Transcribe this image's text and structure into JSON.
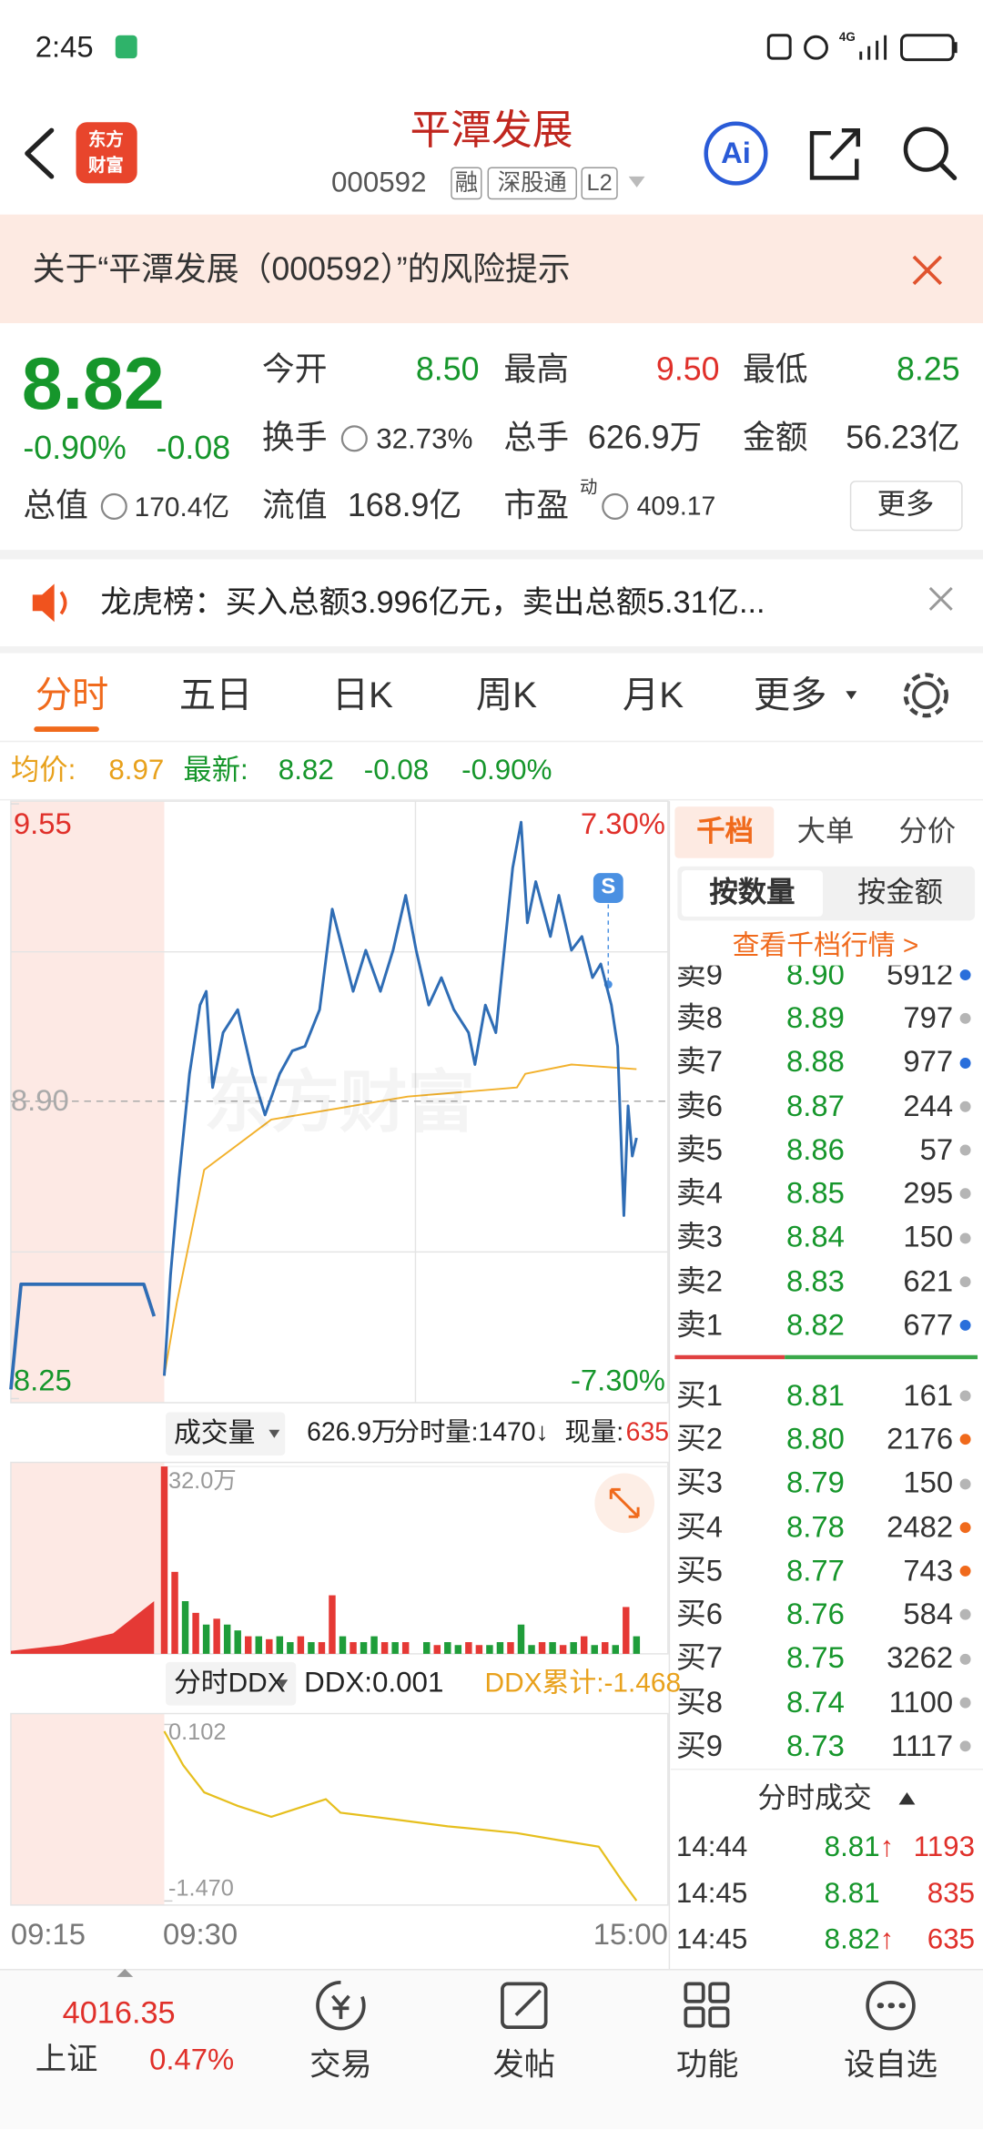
{
  "status": {
    "time": "2:45",
    "network": "4G"
  },
  "header": {
    "logo": [
      "东方",
      "财富"
    ],
    "title": "平潭发展",
    "code": "000592",
    "tags": [
      "融",
      "深股通",
      "L2"
    ],
    "ai": "Ai"
  },
  "banner": {
    "text": "关于“平潭发展（000592）”的风险提示"
  },
  "quote": {
    "price": "8.82",
    "change_pct": "-0.90%",
    "change": "-0.08",
    "open": {
      "label": "今开",
      "value": "8.50"
    },
    "high": {
      "label": "最高",
      "value": "9.50"
    },
    "low": {
      "label": "最低",
      "value": "8.25"
    },
    "turnover": {
      "label": "换手",
      "value": "32.73%"
    },
    "volume": {
      "label": "总手",
      "value": "626.9万"
    },
    "amount": {
      "label": "金额",
      "value": "56.23亿"
    },
    "market_cap": {
      "label": "总值",
      "value": "170.4亿"
    },
    "float_cap": {
      "label": "流值",
      "value": "168.9亿"
    },
    "pe": {
      "label": "市盈",
      "sup": "动",
      "value": "409.17"
    },
    "more": "更多"
  },
  "notice": {
    "text": "龙虎榜：买入总额3.996亿元，卖出总额5.31亿..."
  },
  "tabs": {
    "items": [
      "分时",
      "五日",
      "日K",
      "周K",
      "月K",
      "更多"
    ],
    "active": 0
  },
  "summary": {
    "avg_label": "均价:",
    "avg": "8.97",
    "last_label": "最新:",
    "last": "8.82",
    "change": "-0.08",
    "change_pct": "-0.90%"
  },
  "intraday": {
    "watermark": "东方财富",
    "price_ylim": [
      8.25,
      9.55
    ],
    "price_ticks": [
      9.55,
      8.25,
      {
        "value": 8.9,
        "label": "8.90"
      }
    ],
    "pct_labels": [
      "7.30%",
      "-7.30%"
    ],
    "signal": "S",
    "price": {
      "color": "#2f6db5",
      "x": [
        "09:30",
        "09:33",
        "09:37",
        "09:42",
        "09:47",
        "09:50",
        "09:53",
        "09:58",
        "10:05",
        "10:12",
        "10:18",
        "10:25",
        "10:31",
        "10:37",
        "10:44",
        "10:50",
        "10:55",
        "11:00",
        "11:06",
        "11:13",
        "11:19",
        "11:25",
        "11:30",
        "13:06",
        "13:12",
        "13:18",
        "13:25",
        "13:28",
        "13:33",
        "13:38",
        "13:42",
        "13:46",
        "13:50",
        "13:53",
        "13:57",
        "14:04",
        "14:08",
        "14:14",
        "14:19",
        "14:24",
        "14:28",
        "14:33",
        "14:36",
        "14:39",
        "14:41",
        "14:43",
        "14:45"
      ],
      "values": [
        8.3,
        8.52,
        8.73,
        8.96,
        9.11,
        9.14,
        8.93,
        9.05,
        9.1,
        8.96,
        8.87,
        8.96,
        9.01,
        9.02,
        9.1,
        9.32,
        9.23,
        9.14,
        9.23,
        9.14,
        9.23,
        9.35,
        9.23,
        9.11,
        9.17,
        9.1,
        9.05,
        8.98,
        9.11,
        9.05,
        9.23,
        9.41,
        9.51,
        9.29,
        9.38,
        9.26,
        9.35,
        9.23,
        9.26,
        9.17,
        9.2,
        9.11,
        9.02,
        8.65,
        8.89,
        8.78,
        8.82
      ]
    },
    "auction": {
      "x": [
        "09:15",
        "09:16",
        "09:28",
        "09:29"
      ],
      "values": [
        8.27,
        8.5,
        8.5,
        8.43
      ]
    },
    "avg": {
      "color": "#f2b12c",
      "x": [
        "09:30",
        "09:36",
        "09:49",
        "10:21",
        "11:00",
        "11:26",
        "13:48",
        "13:52",
        "14:14",
        "14:45"
      ],
      "values": [
        8.3,
        8.46,
        8.75,
        8.86,
        8.89,
        8.91,
        8.93,
        8.96,
        8.98,
        8.97
      ]
    },
    "volume_panel": {
      "selector": "成交量",
      "total": "626.9万",
      "minute": "分时量:1470↓",
      "current_label": "现量:",
      "current": "635"
    },
    "volume": {
      "ylim": [
        0,
        32
      ],
      "yticks": [
        {
          "value": 32,
          "label": "32.0万"
        }
      ],
      "x": [
        "09:30",
        "09:35",
        "09:40",
        "09:45",
        "09:50",
        "09:55",
        "10:00",
        "10:05",
        "10:10",
        "10:15",
        "10:20",
        "10:25",
        "10:30",
        "10:35",
        "10:40",
        "10:45",
        "10:50",
        "10:55",
        "11:00",
        "11:05",
        "11:10",
        "11:15",
        "11:20",
        "11:25",
        "13:05",
        "13:10",
        "13:15",
        "13:20",
        "13:25",
        "13:30",
        "13:35",
        "13:40",
        "13:45",
        "13:50",
        "13:55",
        "14:00",
        "14:05",
        "14:10",
        "14:15",
        "14:20",
        "14:25",
        "14:30",
        "14:35",
        "14:40",
        "14:45"
      ],
      "values": [
        32,
        14,
        9,
        7,
        5,
        6,
        5,
        4,
        3,
        3,
        2.5,
        3,
        2,
        3,
        2,
        2,
        10,
        3,
        2,
        2,
        3,
        2,
        2,
        2,
        2,
        1.5,
        2,
        1.5,
        2,
        1.5,
        1.5,
        2,
        2,
        5,
        1.5,
        2,
        2,
        1.5,
        2,
        3,
        1.5,
        2,
        1.5,
        8,
        3
      ],
      "colors": [
        "#e53935",
        "#e53935",
        "#1f9d3a",
        "#e53935",
        "#1f9d3a",
        "#e53935",
        "#1f9d3a",
        "#1f9d3a",
        "#e53935",
        "#1f9d3a",
        "#e53935",
        "#1f9d3a",
        "#1f9d3a",
        "#e53935",
        "#1f9d3a",
        "#e53935",
        "#e53935",
        "#1f9d3a",
        "#e53935",
        "#1f9d3a",
        "#1f9d3a",
        "#e53935",
        "#1f9d3a",
        "#e53935",
        "#1f9d3a",
        "#e53935",
        "#1f9d3a",
        "#1f9d3a",
        "#e53935",
        "#e53935",
        "#1f9d3a",
        "#1f9d3a",
        "#e53935",
        "#1f9d3a",
        "#1f9d3a",
        "#e53935",
        "#1f9d3a",
        "#e53935",
        "#1f9d3a",
        "#e53935",
        "#1f9d3a",
        "#e53935",
        "#1f9d3a",
        "#e53935",
        "#1f9d3a"
      ]
    },
    "auction_volume": {
      "x": [
        "09:15",
        "09:20",
        "09:25",
        "09:29"
      ],
      "values": [
        0.5,
        1.5,
        3.5,
        9
      ]
    },
    "ddx_panel": {
      "selector": "分时DDX",
      "ddx": "DDX:0.001",
      "cumulative": "DDX累计:-1.468"
    },
    "ddx": {
      "ylim": [
        -1.47,
        0.102
      ],
      "yticks": [
        0.102,
        {
          "value": -1.47,
          "label": "-1.470"
        }
      ],
      "color": "#e6bf1e",
      "x": [
        "09:30",
        "09:39",
        "09:49",
        "10:05",
        "10:21",
        "10:47",
        "10:54",
        "11:20",
        "13:15",
        "13:48",
        "14:07",
        "14:27",
        "14:38",
        "14:45"
      ],
      "values": [
        0.042,
        -0.261,
        -0.503,
        -0.624,
        -0.72,
        -0.563,
        -0.684,
        -0.744,
        -0.805,
        -0.865,
        -0.926,
        -0.986,
        -1.289,
        -1.468
      ]
    },
    "time_labels": [
      "09:15",
      "09:30",
      "15:00"
    ]
  },
  "depth": {
    "tabs": [
      "千档",
      "大单",
      "分价"
    ],
    "modes": [
      "按数量",
      "按金额"
    ],
    "link": "查看千档行情 >",
    "asks": [
      {
        "label": "卖9",
        "price": "8.90",
        "volume": "5912",
        "dot": "#2a6fdb"
      },
      {
        "label": "卖8",
        "price": "8.89",
        "volume": "797",
        "dot": "#b5b5b5"
      },
      {
        "label": "卖7",
        "price": "8.88",
        "volume": "977",
        "dot": "#2a6fdb"
      },
      {
        "label": "卖6",
        "price": "8.87",
        "volume": "244",
        "dot": "#b5b5b5"
      },
      {
        "label": "卖5",
        "price": "8.86",
        "volume": "57",
        "dot": "#b5b5b5"
      },
      {
        "label": "卖4",
        "price": "8.85",
        "volume": "295",
        "dot": "#b5b5b5"
      },
      {
        "label": "卖3",
        "price": "8.84",
        "volume": "150",
        "dot": "#b5b5b5"
      },
      {
        "label": "卖2",
        "price": "8.83",
        "volume": "621",
        "dot": "#b5b5b5"
      },
      {
        "label": "卖1",
        "price": "8.82",
        "volume": "677",
        "dot": "#2a6fdb"
      }
    ],
    "bids": [
      {
        "label": "买1",
        "price": "8.81",
        "volume": "161",
        "dot": "#b5b5b5"
      },
      {
        "label": "买2",
        "price": "8.80",
        "volume": "2176",
        "dot": "#f06a1c"
      },
      {
        "label": "买3",
        "price": "8.79",
        "volume": "150",
        "dot": "#b5b5b5"
      },
      {
        "label": "买4",
        "price": "8.78",
        "volume": "2482",
        "dot": "#f06a1c"
      },
      {
        "label": "买5",
        "price": "8.77",
        "volume": "743",
        "dot": "#f06a1c"
      },
      {
        "label": "买6",
        "price": "8.76",
        "volume": "584",
        "dot": "#b5b5b5"
      },
      {
        "label": "买7",
        "price": "8.75",
        "volume": "3262",
        "dot": "#b5b5b5"
      },
      {
        "label": "买8",
        "price": "8.74",
        "volume": "1100",
        "dot": "#b5b5b5"
      },
      {
        "label": "买9",
        "price": "8.73",
        "volume": "1117",
        "dot": "#b5b5b5"
      }
    ],
    "trades_title": "分时成交",
    "trades": [
      {
        "time": "14:44",
        "price": "8.81",
        "arrow": "↑",
        "volume": "1193"
      },
      {
        "time": "14:45",
        "price": "8.81",
        "volume": "835"
      },
      {
        "time": "14:45",
        "price": "8.82",
        "arrow": "↑",
        "volume": "635"
      }
    ]
  },
  "nav": {
    "index_value": "4016.35",
    "index_name": "上证",
    "index_change": "0.47%",
    "items": [
      "交易",
      "发帖",
      "功能",
      "设自选"
    ]
  }
}
